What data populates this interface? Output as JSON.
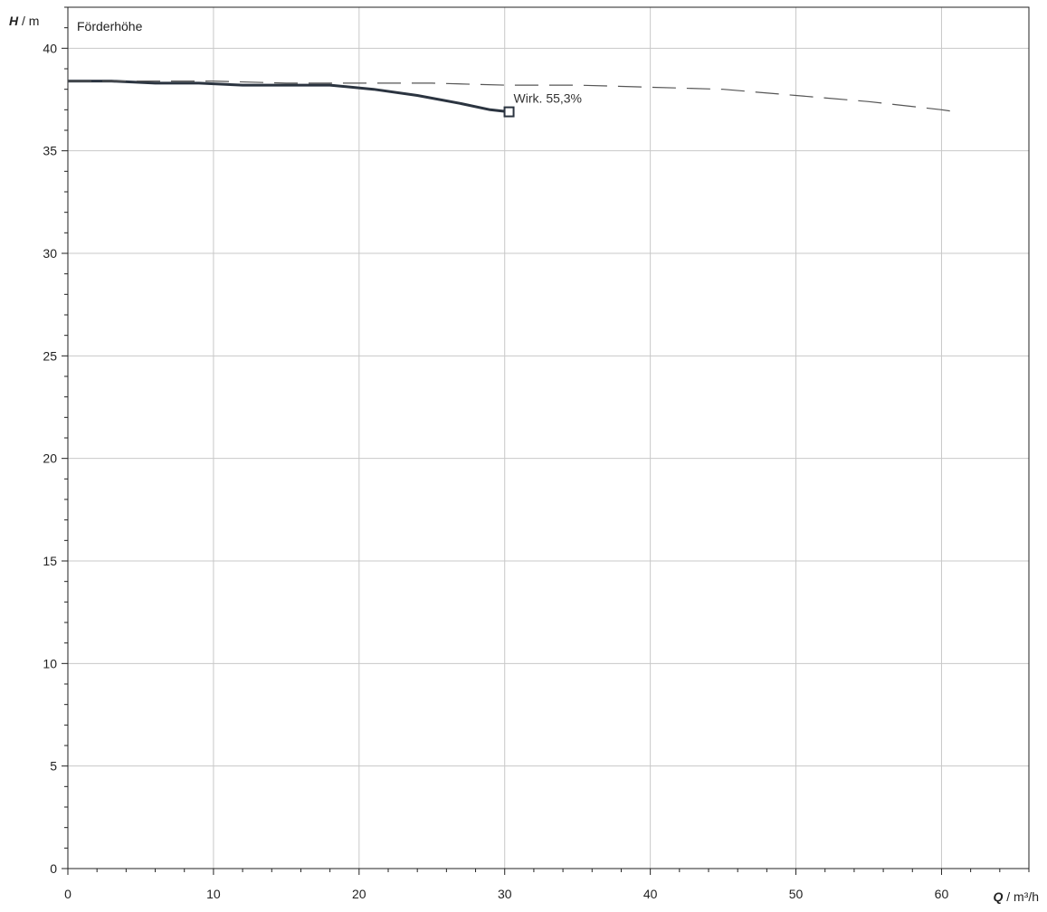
{
  "chart_data": {
    "type": "line",
    "title": "Förderhöhe",
    "ylabel_var": "H",
    "ylabel_unit": " / m",
    "xlabel_var": "Q",
    "xlabel_unit": " / m³/h",
    "xlim": [
      0,
      66
    ],
    "ylim": [
      0,
      42
    ],
    "x_ticks": [
      0,
      10,
      20,
      30,
      40,
      50,
      60
    ],
    "y_ticks": [
      0,
      5,
      10,
      15,
      20,
      25,
      30,
      35,
      40
    ],
    "x_minor_step": 2,
    "y_minor_step": 1,
    "grid": true,
    "series": [
      {
        "style": "solid",
        "color": "#2b3440",
        "x": [
          0,
          3,
          6,
          9,
          12,
          15,
          18,
          21,
          24,
          27,
          29,
          30.3
        ],
        "y": [
          38.4,
          38.4,
          38.3,
          38.3,
          38.2,
          38.2,
          38.2,
          38.0,
          37.7,
          37.3,
          37.0,
          36.9
        ]
      },
      {
        "style": "dashed",
        "color": "#555555",
        "x": [
          0,
          5,
          10,
          15,
          20,
          25,
          30,
          35,
          40,
          45,
          50,
          55,
          60,
          61
        ],
        "y": [
          38.4,
          38.4,
          38.4,
          38.3,
          38.3,
          38.3,
          38.2,
          38.2,
          38.1,
          38.0,
          37.7,
          37.4,
          37.0,
          36.9
        ]
      }
    ],
    "marker": {
      "x": 30.3,
      "y": 36.9,
      "label": "Wirk.  55,3%"
    }
  }
}
